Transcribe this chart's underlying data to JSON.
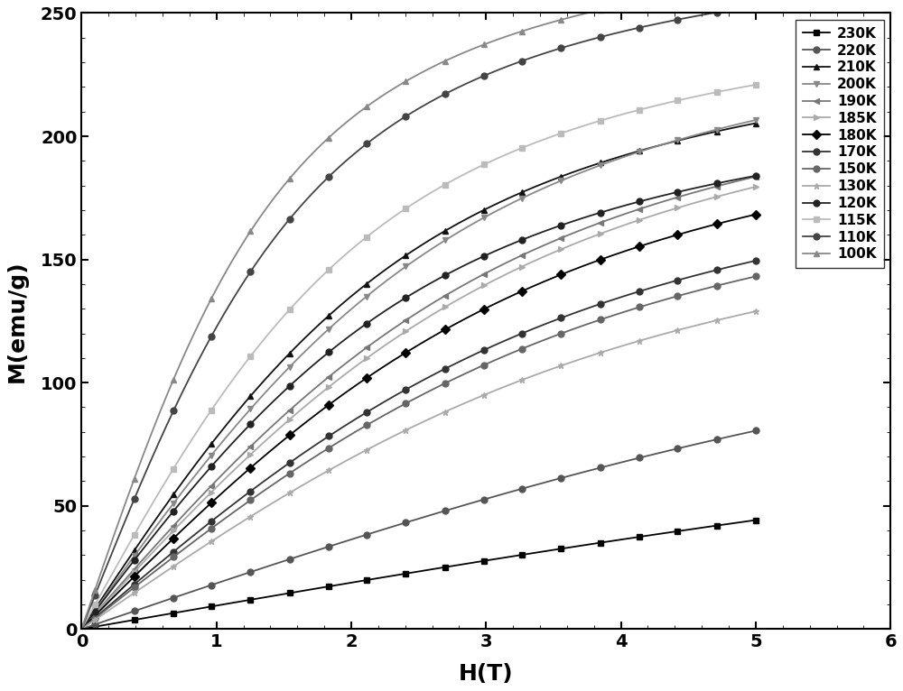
{
  "temperatures": [
    230,
    220,
    210,
    200,
    190,
    185,
    180,
    170,
    150,
    130,
    120,
    115,
    110,
    100
  ],
  "M_sat": [
    130,
    175,
    260,
    270,
    250,
    248,
    235,
    215,
    210,
    195,
    235,
    270,
    295,
    300
  ],
  "curve_sharpness": [
    0.22,
    0.32,
    0.95,
    0.85,
    0.75,
    0.72,
    0.7,
    0.65,
    0.62,
    0.58,
    0.92,
    1.1,
    1.4,
    1.6
  ],
  "colors": [
    "#000000",
    "#555555",
    "#111111",
    "#888888",
    "#777777",
    "#aaaaaa",
    "#000000",
    "#333333",
    "#666666",
    "#aaaaaa",
    "#222222",
    "#bbbbbb",
    "#444444",
    "#888888"
  ],
  "markers": [
    "s",
    "o",
    "^",
    "v",
    "<",
    ">",
    "D",
    "o",
    "o",
    "*",
    "o",
    "s",
    "o",
    "^"
  ],
  "linestyles": [
    "-",
    "-",
    "-",
    "-",
    "-",
    "-",
    "-",
    "-",
    "-",
    "-",
    "-",
    "-",
    "-",
    "-"
  ],
  "labels": [
    "230K",
    "220K",
    "210K",
    "200K",
    "190K",
    "185K",
    "180K",
    "170K",
    "150K",
    "130K",
    "120K",
    "115K",
    "110K",
    "100K"
  ],
  "xlabel": "H(T)",
  "ylabel": "M(emu/g)",
  "xlim": [
    0,
    6
  ],
  "ylim": [
    0,
    250
  ],
  "xticks": [
    0,
    1,
    2,
    3,
    4,
    5,
    6
  ],
  "yticks": [
    0,
    50,
    100,
    150,
    200,
    250
  ],
  "figsize": [
    10.0,
    7.66
  ],
  "dpi": 100
}
